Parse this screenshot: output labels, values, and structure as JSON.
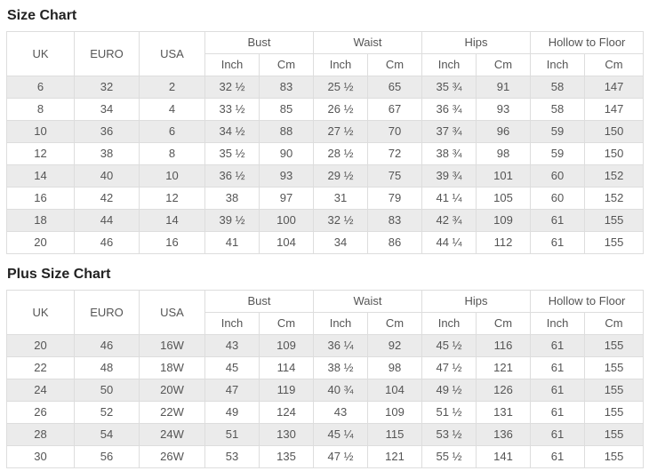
{
  "page": {
    "background": "#ffffff",
    "text_color": "#555555",
    "title_color": "#222222",
    "border_color": "#dddddd",
    "stripe_color": "#ebebeb"
  },
  "tables": [
    {
      "title": "Size Chart",
      "headers": {
        "simple": [
          "UK",
          "EURO",
          "USA"
        ],
        "groups": [
          {
            "label": "Bust",
            "sub": [
              "Inch",
              "Cm"
            ]
          },
          {
            "label": "Waist",
            "sub": [
              "Inch",
              "Cm"
            ]
          },
          {
            "label": "Hips",
            "sub": [
              "Inch",
              "Cm"
            ]
          },
          {
            "label": "Hollow to Floor",
            "sub": [
              "Inch",
              "Cm"
            ]
          }
        ]
      },
      "rows": [
        [
          "6",
          "32",
          "2",
          "32 ½",
          "83",
          "25 ½",
          "65",
          "35 ¾",
          "91",
          "58",
          "147"
        ],
        [
          "8",
          "34",
          "4",
          "33 ½",
          "85",
          "26 ½",
          "67",
          "36 ¾",
          "93",
          "58",
          "147"
        ],
        [
          "10",
          "36",
          "6",
          "34 ½",
          "88",
          "27 ½",
          "70",
          "37 ¾",
          "96",
          "59",
          "150"
        ],
        [
          "12",
          "38",
          "8",
          "35 ½",
          "90",
          "28 ½",
          "72",
          "38 ¾",
          "98",
          "59",
          "150"
        ],
        [
          "14",
          "40",
          "10",
          "36 ½",
          "93",
          "29 ½",
          "75",
          "39 ¾",
          "101",
          "60",
          "152"
        ],
        [
          "16",
          "42",
          "12",
          "38",
          "97",
          "31",
          "79",
          "41 ¼",
          "105",
          "60",
          "152"
        ],
        [
          "18",
          "44",
          "14",
          "39 ½",
          "100",
          "32 ½",
          "83",
          "42 ¾",
          "109",
          "61",
          "155"
        ],
        [
          "20",
          "46",
          "16",
          "41",
          "104",
          "34",
          "86",
          "44 ¼",
          "112",
          "61",
          "155"
        ]
      ]
    },
    {
      "title": "Plus Size Chart",
      "headers": {
        "simple": [
          "UK",
          "EURO",
          "USA"
        ],
        "groups": [
          {
            "label": "Bust",
            "sub": [
              "Inch",
              "Cm"
            ]
          },
          {
            "label": "Waist",
            "sub": [
              "Inch",
              "Cm"
            ]
          },
          {
            "label": "Hips",
            "sub": [
              "Inch",
              "Cm"
            ]
          },
          {
            "label": "Hollow to Floor",
            "sub": [
              "Inch",
              "Cm"
            ]
          }
        ]
      },
      "rows": [
        [
          "20",
          "46",
          "16W",
          "43",
          "109",
          "36 ¼",
          "92",
          "45 ½",
          "116",
          "61",
          "155"
        ],
        [
          "22",
          "48",
          "18W",
          "45",
          "114",
          "38 ½",
          "98",
          "47 ½",
          "121",
          "61",
          "155"
        ],
        [
          "24",
          "50",
          "20W",
          "47",
          "119",
          "40 ¾",
          "104",
          "49 ½",
          "126",
          "61",
          "155"
        ],
        [
          "26",
          "52",
          "22W",
          "49",
          "124",
          "43",
          "109",
          "51 ½",
          "131",
          "61",
          "155"
        ],
        [
          "28",
          "54",
          "24W",
          "51",
          "130",
          "45 ¼",
          "115",
          "53 ½",
          "136",
          "61",
          "155"
        ],
        [
          "30",
          "56",
          "26W",
          "53",
          "135",
          "47 ½",
          "121",
          "55 ½",
          "141",
          "61",
          "155"
        ]
      ]
    }
  ]
}
